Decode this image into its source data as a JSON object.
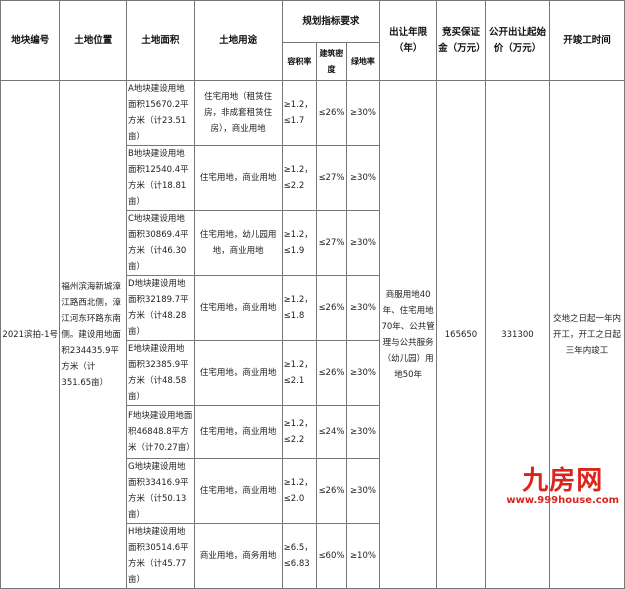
{
  "headers": {
    "id": "地块编号",
    "location": "土地位置",
    "area": "土地面积",
    "use": "土地用途",
    "planning": "规划指标要求",
    "far": "容积率",
    "density": "建筑密度",
    "green": "绿地率",
    "term": "出让年限（年）",
    "deposit": "竞买保证金（万元）",
    "price": "公开出让起始价（万元）",
    "schedule": "开竣工时间"
  },
  "parcel": {
    "id": "2021滨拍-1号",
    "location": "福州滨海新城漳江路西北侧，漳江河东环路东南侧。建设用地面积234435.9平方米（计351.65亩）",
    "term": "商服用地40年、住宅用地70年、公共管理与公共服务（幼儿园）用地50年",
    "deposit": "165650",
    "price": "331300",
    "schedule": "交地之日起一年内开工，开工之日起三年内竣工"
  },
  "rows": [
    {
      "area": "A地块建设用地面积15670.2平方米（计23.51亩）",
      "use": "住宅用地（租赁住房，非成套租赁住房），商业用地",
      "far": "≥1.2，≤1.7",
      "density": "≤26%",
      "green": "≥30%"
    },
    {
      "area": "B地块建设用地面积12540.4平方米（计18.81亩）",
      "use": "住宅用地，商业用地",
      "far": "≥1.2，≤2.2",
      "density": "≤27%",
      "green": "≥30%"
    },
    {
      "area": "C地块建设用地面积30869.4平方米（计46.30亩）",
      "use": "住宅用地，幼儿园用地，商业用地",
      "far": "≥1.2，≤1.9",
      "density": "≤27%",
      "green": "≥30%"
    },
    {
      "area": "D地块建设用地面积32189.7平方米（计48.28亩）",
      "use": "住宅用地，商业用地",
      "far": "≥1.2，≤1.8",
      "density": "≤26%",
      "green": "≥30%"
    },
    {
      "area": "E地块建设用地面积32385.9平方米（计48.58亩）",
      "use": "住宅用地，商业用地",
      "far": "≥1.2，≤2.1",
      "density": "≤26%",
      "green": "≥30%"
    },
    {
      "area": "F地块建设用地面积46848.8平方米（计70.27亩）",
      "use": "住宅用地，商业用地",
      "far": "≥1.2，≤2.2",
      "density": "≤24%",
      "green": "≥30%"
    },
    {
      "area": "G地块建设用地面积33416.9平方米（计50.13亩）",
      "use": "住宅用地，商业用地",
      "far": "≥1.2，≤2.0",
      "density": "≤26%",
      "green": "≥30%"
    },
    {
      "area": "H地块建设用地面积30514.6平方米（计45.77亩）",
      "use": "商业用地，商务用地",
      "far": "≥6.5，≤6.83",
      "density": "≤60%",
      "green": "≥10%"
    }
  ],
  "watermark": {
    "logo": "九房网",
    "url": "www.999house.com"
  }
}
